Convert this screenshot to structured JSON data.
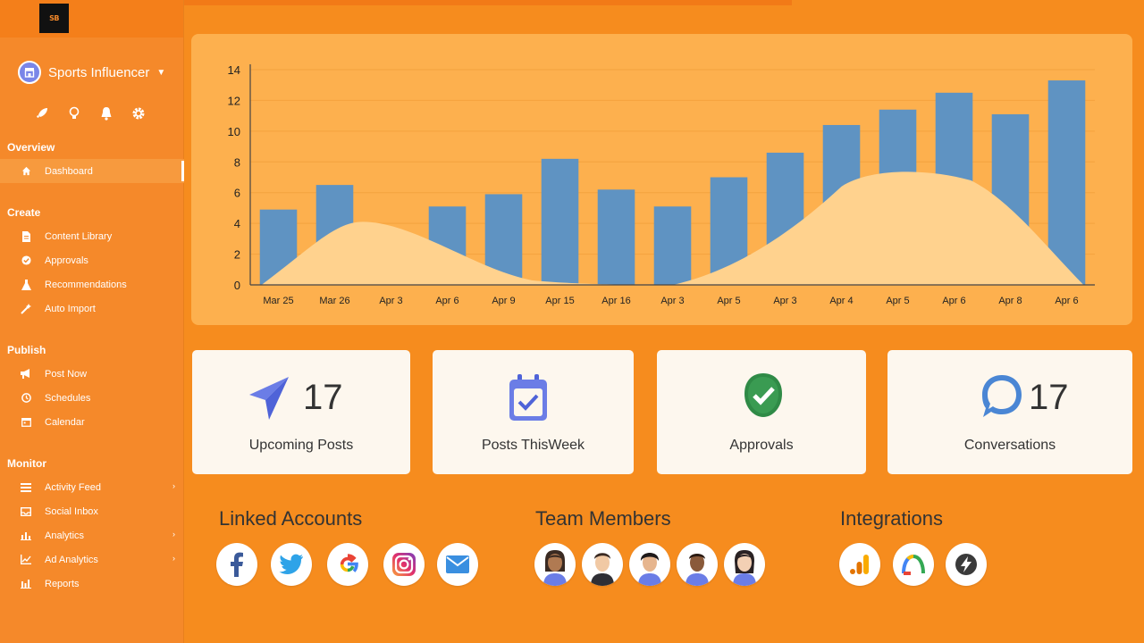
{
  "logo_text": "SB",
  "account": {
    "name": "Sports Influencer"
  },
  "sidebar": {
    "quick_icons": [
      "rocket-icon",
      "lightbulb-icon",
      "bell-icon",
      "gear-icon"
    ],
    "sections": [
      {
        "title": "Overview",
        "items": [
          {
            "label": "Dashboard",
            "icon": "home-icon",
            "active": true
          }
        ]
      },
      {
        "title": "Create",
        "items": [
          {
            "label": "Content Library",
            "icon": "document-icon"
          },
          {
            "label": "Approvals",
            "icon": "check-circle-icon"
          },
          {
            "label": "Recommendations",
            "icon": "flask-icon"
          },
          {
            "label": "Auto Import",
            "icon": "wand-icon"
          }
        ]
      },
      {
        "title": "Publish",
        "items": [
          {
            "label": "Post Now",
            "icon": "megaphone-icon"
          },
          {
            "label": "Schedules",
            "icon": "clock-icon"
          },
          {
            "label": "Calendar",
            "icon": "calendar-icon"
          }
        ]
      },
      {
        "title": "Monitor",
        "items": [
          {
            "label": "Activity Feed",
            "icon": "list-icon",
            "chevron": true
          },
          {
            "label": "Social Inbox",
            "icon": "inbox-icon"
          },
          {
            "label": "Analytics",
            "icon": "bar-chart-icon",
            "chevron": true
          },
          {
            "label": "Ad Analytics",
            "icon": "line-chart-icon",
            "chevron": true
          },
          {
            "label": "Reports",
            "icon": "report-icon"
          }
        ]
      }
    ]
  },
  "chart_data": {
    "type": "bar",
    "categories": [
      "Mar 25",
      "Mar 26",
      "Apr 3",
      "Apr 6",
      "Apr 9",
      "Apr 15",
      "Apr 16",
      "Apr 3",
      "Apr 5",
      "Apr 3",
      "Apr 4",
      "Apr 5",
      "Apr 6",
      "Apr 8",
      "Apr 6"
    ],
    "values": [
      4.9,
      6.5,
      null,
      5.1,
      5.9,
      8.2,
      6.2,
      5.1,
      7.0,
      8.6,
      10.4,
      11.4,
      12.5,
      11.1,
      13.3
    ],
    "area_peaks": [
      {
        "x_index": 1.5,
        "y": 4.1
      },
      {
        "x_index": 11.0,
        "y": 7.6
      }
    ],
    "yticks": [
      0,
      2,
      4,
      6,
      8,
      10,
      12,
      14
    ],
    "ylim": [
      0,
      14
    ],
    "grid": true,
    "colors": {
      "bar": "#5f93c2",
      "area": "#ffd28e",
      "card": "#fdb04e"
    }
  },
  "stats": [
    {
      "value": "17",
      "label": "Upcoming Posts",
      "icon": "paper-plane-icon"
    },
    {
      "value": "",
      "label": "Posts ThisWeek",
      "icon": "calendar-check-icon"
    },
    {
      "value": "",
      "label": "Approvals",
      "icon": "check-badge-icon"
    },
    {
      "value": "17",
      "label": "Conversations",
      "icon": "chat-bubble-icon"
    }
  ],
  "groups": {
    "linked_accounts": {
      "title": "Linked Accounts",
      "items": [
        "facebook-icon",
        "twitter-icon",
        "google-icon",
        "instagram-icon",
        "email-icon"
      ]
    },
    "team_members": {
      "title": "Team Members",
      "items": [
        "member-avatar-1",
        "member-avatar-2",
        "member-avatar-3",
        "member-avatar-4",
        "member-avatar-5"
      ]
    },
    "integrations": {
      "title": "Integrations",
      "items": [
        "google-analytics-icon",
        "google-ads-icon",
        "bolt-icon"
      ]
    }
  }
}
